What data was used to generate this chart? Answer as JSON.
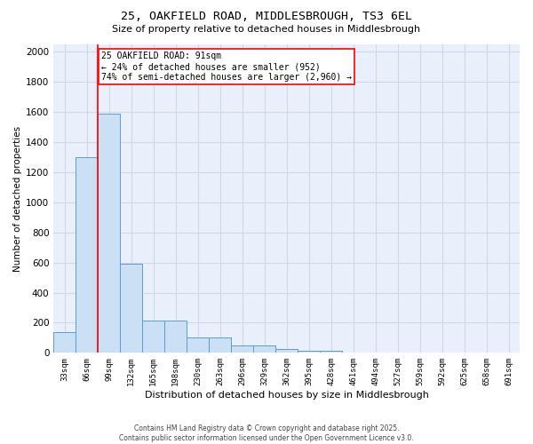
{
  "title1": "25, OAKFIELD ROAD, MIDDLESBROUGH, TS3 6EL",
  "title2": "Size of property relative to detached houses in Middlesbrough",
  "xlabel": "Distribution of detached houses by size in Middlesbrough",
  "ylabel": "Number of detached properties",
  "bin_labels": [
    "33sqm",
    "66sqm",
    "99sqm",
    "132sqm",
    "165sqm",
    "198sqm",
    "230sqm",
    "263sqm",
    "296sqm",
    "329sqm",
    "362sqm",
    "395sqm",
    "428sqm",
    "461sqm",
    "494sqm",
    "527sqm",
    "559sqm",
    "592sqm",
    "625sqm",
    "658sqm",
    "691sqm"
  ],
  "bar_heights": [
    140,
    1300,
    1590,
    590,
    215,
    215,
    100,
    100,
    50,
    50,
    25,
    15,
    15,
    0,
    0,
    0,
    0,
    0,
    0,
    0,
    0
  ],
  "bar_color": "#cce0f5",
  "bar_edge_color": "#5b9bd5",
  "red_line_x": 1.5,
  "annotation_text": "25 OAKFIELD ROAD: 91sqm\n← 24% of detached houses are smaller (952)\n74% of semi-detached houses are larger (2,960) →",
  "annotation_box_color": "white",
  "annotation_border_color": "red",
  "red_line_color": "red",
  "grid_color": "#d0d8e8",
  "background_color": "#eaf0fb",
  "ylim": [
    0,
    2050
  ],
  "yticks": [
    0,
    200,
    400,
    600,
    800,
    1000,
    1200,
    1400,
    1600,
    1800,
    2000
  ],
  "footer1": "Contains HM Land Registry data © Crown copyright and database right 2025.",
  "footer2": "Contains public sector information licensed under the Open Government Licence v3.0."
}
